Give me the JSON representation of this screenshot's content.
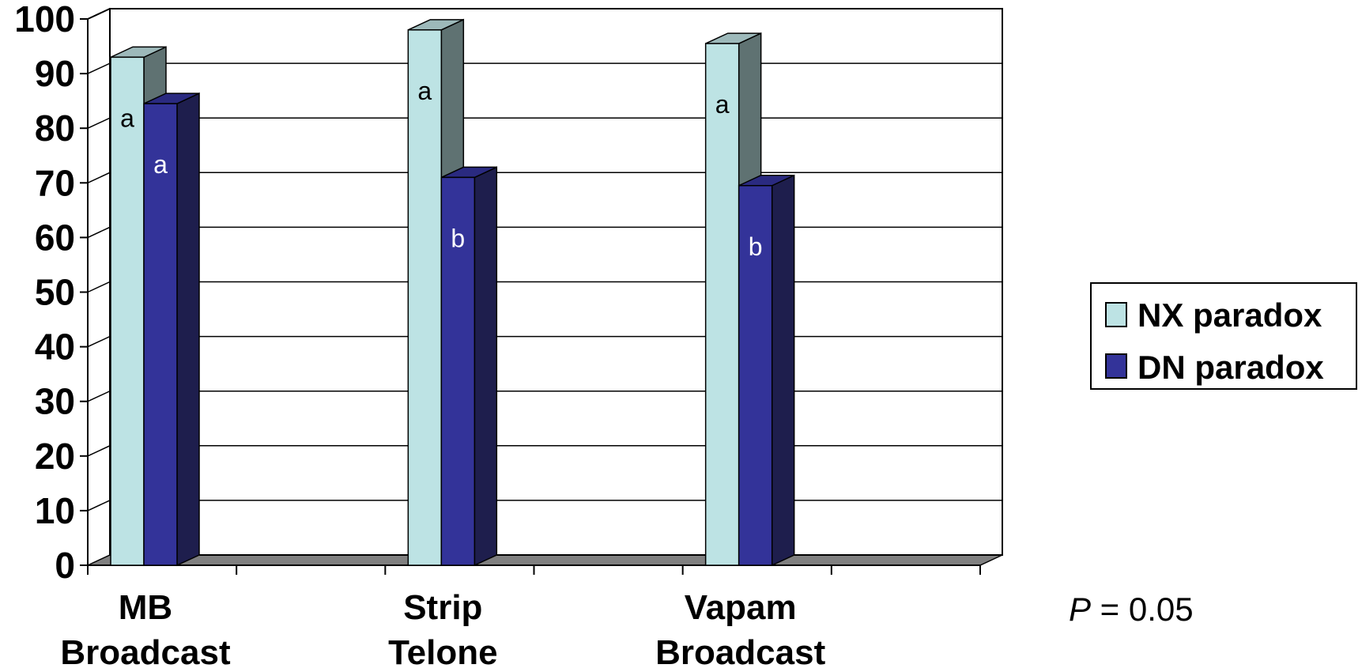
{
  "chart_data": {
    "type": "bar",
    "categories": [
      [
        "MB",
        "Broadcast"
      ],
      [
        "Strip",
        "Telone"
      ],
      [
        "Vapam",
        "Broadcast"
      ]
    ],
    "series": [
      {
        "name": "NX paradox",
        "values": [
          93,
          98,
          95.5
        ],
        "labels": [
          "a",
          "a",
          "a"
        ],
        "color": "#bde3e4",
        "side_color": "#5f7272",
        "top_color": "#9db9ba",
        "label_color": "#000000"
      },
      {
        "name": "DN paradox",
        "values": [
          84.5,
          71,
          69.5
        ],
        "labels": [
          "a",
          "b",
          "b"
        ],
        "color": "#333399",
        "side_color": "#1e1e4d",
        "top_color": "#2a2a80",
        "label_color": "#ffffff"
      }
    ],
    "ylim": [
      0,
      100
    ],
    "yticks": [
      "0",
      "10",
      "20",
      "30",
      "40",
      "50",
      "60",
      "70",
      "80",
      "90",
      "100"
    ],
    "grid": true,
    "legend": "right",
    "annotation": {
      "italic": "P",
      "rest": " = 0.05"
    }
  }
}
